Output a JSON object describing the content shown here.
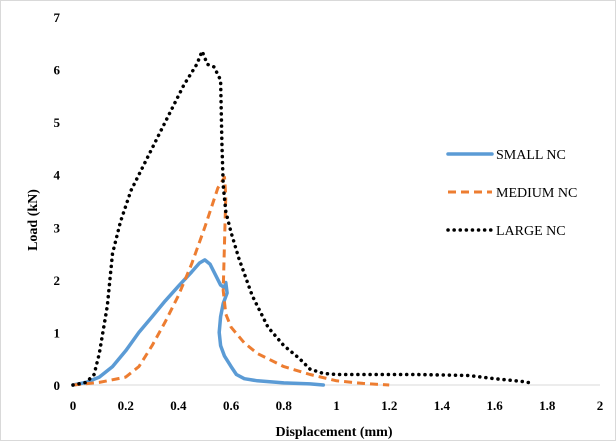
{
  "chart_data": {
    "type": "line",
    "title": "",
    "xlabel": "Displacement (mm)",
    "ylabel": "Load (kN)",
    "xlim": [
      0,
      2
    ],
    "ylim": [
      0,
      7
    ],
    "x_ticks": [
      "0",
      "0.2",
      "0.4",
      "0.6",
      "0.8",
      "1",
      "1.2",
      "1.4",
      "1.6",
      "1.8",
      "2"
    ],
    "y_ticks": [
      "0",
      "1",
      "2",
      "3",
      "4",
      "5",
      "6",
      "7"
    ],
    "grid": false,
    "legend_position": "right",
    "series": [
      {
        "name": "SMALL NC",
        "color": "#5b9bd5",
        "style": "solid",
        "points": [
          [
            0,
            0
          ],
          [
            0.05,
            0.05
          ],
          [
            0.1,
            0.15
          ],
          [
            0.15,
            0.35
          ],
          [
            0.2,
            0.65
          ],
          [
            0.25,
            1.0
          ],
          [
            0.3,
            1.3
          ],
          [
            0.35,
            1.6
          ],
          [
            0.4,
            1.88
          ],
          [
            0.45,
            2.15
          ],
          [
            0.48,
            2.32
          ],
          [
            0.5,
            2.38
          ],
          [
            0.52,
            2.3
          ],
          [
            0.54,
            2.1
          ],
          [
            0.56,
            1.9
          ],
          [
            0.575,
            1.85
          ],
          [
            0.58,
            1.95
          ],
          [
            0.585,
            1.75
          ],
          [
            0.57,
            1.55
          ],
          [
            0.56,
            1.3
          ],
          [
            0.555,
            1.0
          ],
          [
            0.56,
            0.75
          ],
          [
            0.575,
            0.55
          ],
          [
            0.6,
            0.35
          ],
          [
            0.62,
            0.2
          ],
          [
            0.65,
            0.12
          ],
          [
            0.7,
            0.08
          ],
          [
            0.8,
            0.04
          ],
          [
            0.9,
            0.02
          ],
          [
            0.95,
            0.0
          ]
        ]
      },
      {
        "name": "MEDIUM NC",
        "color": "#ed7d31",
        "style": "dashed",
        "points": [
          [
            0,
            0
          ],
          [
            0.1,
            0.05
          ],
          [
            0.2,
            0.15
          ],
          [
            0.25,
            0.35
          ],
          [
            0.3,
            0.75
          ],
          [
            0.35,
            1.2
          ],
          [
            0.4,
            1.7
          ],
          [
            0.45,
            2.3
          ],
          [
            0.5,
            3.0
          ],
          [
            0.55,
            3.75
          ],
          [
            0.575,
            3.95
          ],
          [
            0.58,
            3.6
          ],
          [
            0.575,
            2.7
          ],
          [
            0.57,
            1.8
          ],
          [
            0.58,
            1.35
          ],
          [
            0.6,
            1.1
          ],
          [
            0.65,
            0.8
          ],
          [
            0.7,
            0.6
          ],
          [
            0.8,
            0.35
          ],
          [
            0.9,
            0.2
          ],
          [
            1.0,
            0.08
          ],
          [
            1.1,
            0.03
          ],
          [
            1.2,
            0.0
          ]
        ]
      },
      {
        "name": "LARGE NC",
        "color": "#000000",
        "style": "dotted",
        "points": [
          [
            0,
            0
          ],
          [
            0.05,
            0.05
          ],
          [
            0.08,
            0.2
          ],
          [
            0.1,
            0.6
          ],
          [
            0.13,
            1.5
          ],
          [
            0.15,
            2.5
          ],
          [
            0.18,
            3.1
          ],
          [
            0.22,
            3.7
          ],
          [
            0.28,
            4.3
          ],
          [
            0.35,
            5.0
          ],
          [
            0.42,
            5.7
          ],
          [
            0.47,
            6.1
          ],
          [
            0.49,
            6.35
          ],
          [
            0.51,
            6.1
          ],
          [
            0.535,
            6.05
          ],
          [
            0.56,
            5.8
          ],
          [
            0.565,
            4.6
          ],
          [
            0.57,
            3.8
          ],
          [
            0.58,
            3.3
          ],
          [
            0.6,
            2.9
          ],
          [
            0.63,
            2.4
          ],
          [
            0.68,
            1.7
          ],
          [
            0.74,
            1.1
          ],
          [
            0.8,
            0.75
          ],
          [
            0.86,
            0.5
          ],
          [
            0.9,
            0.3
          ],
          [
            0.95,
            0.22
          ],
          [
            1.0,
            0.2
          ],
          [
            1.1,
            0.2
          ],
          [
            1.3,
            0.2
          ],
          [
            1.5,
            0.18
          ],
          [
            1.6,
            0.12
          ],
          [
            1.7,
            0.07
          ],
          [
            1.75,
            0.03
          ]
        ]
      }
    ]
  }
}
